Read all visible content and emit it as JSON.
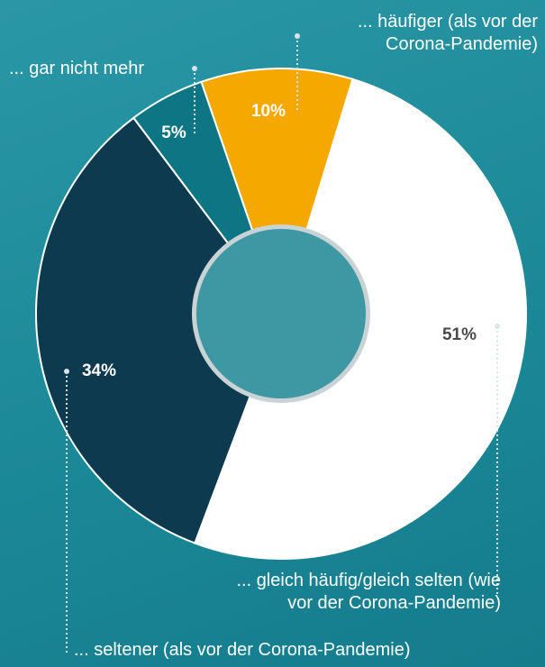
{
  "chart_data": {
    "type": "donut",
    "categories": [
      "... häufiger (als vor der Corona-Pandemie)",
      "... gleich häufig/gleich selten (wie vor der Corona-Pandemie)",
      "... seltener (als vor der Corona-Pandemie)",
      "... gar nicht mehr"
    ],
    "values": [
      10,
      51,
      34,
      5
    ],
    "value_labels": [
      "10%",
      "51%",
      "34%",
      "5%"
    ],
    "colors": [
      "#f5a800",
      "#ffffff",
      "#0d3a4f",
      "#0e7584"
    ]
  }
}
